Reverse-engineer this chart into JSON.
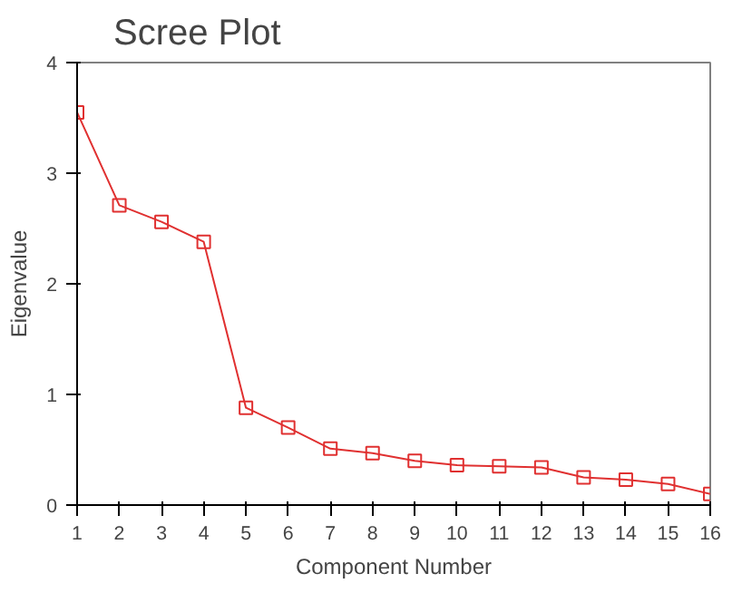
{
  "chart_data": {
    "type": "line",
    "title": "Scree Plot",
    "xlabel": "Component Number",
    "ylabel": "Eigenvalue",
    "x": [
      1,
      2,
      3,
      4,
      5,
      6,
      7,
      8,
      9,
      10,
      11,
      12,
      13,
      14,
      15,
      16
    ],
    "series": [
      {
        "color": "#e03030",
        "values": [
          3.55,
          2.71,
          2.56,
          2.38,
          0.88,
          0.7,
          0.51,
          0.47,
          0.4,
          0.36,
          0.35,
          0.34,
          0.25,
          0.23,
          0.19,
          0.1
        ]
      }
    ],
    "xlim": [
      1,
      16
    ],
    "ylim": [
      0,
      4
    ],
    "xticks": [
      1,
      2,
      3,
      4,
      5,
      6,
      7,
      8,
      9,
      10,
      11,
      12,
      13,
      14,
      15,
      16
    ],
    "yticks": [
      0,
      1,
      2,
      3,
      4
    ],
    "grid": false,
    "marker": "square",
    "line_style": "solid"
  }
}
